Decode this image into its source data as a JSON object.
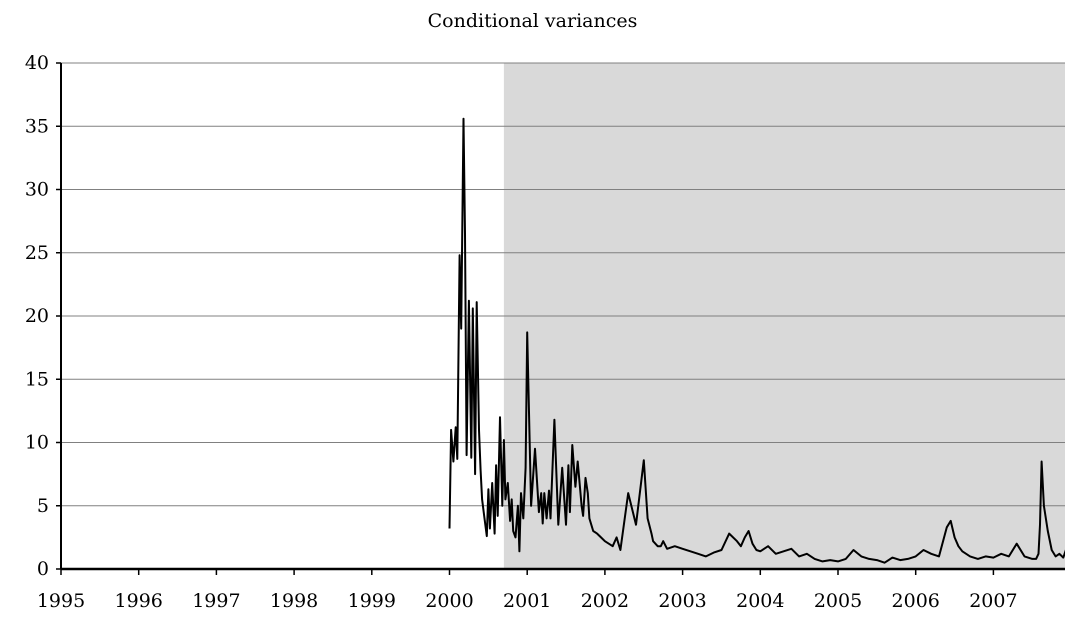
{
  "chart_data": {
    "type": "line",
    "title": "Conditional variances",
    "xlabel": "",
    "ylabel": "",
    "xlim": [
      1995,
      2008
    ],
    "ylim": [
      0,
      40
    ],
    "x_ticks": [
      "1995",
      "1996",
      "1997",
      "1998",
      "1999",
      "2000",
      "2001",
      "2002",
      "2003",
      "2004",
      "2005",
      "2006",
      "2007"
    ],
    "y_ticks": [
      "0",
      "5",
      "10",
      "15",
      "20",
      "25",
      "30",
      "35",
      "40"
    ],
    "grid": "horizontal",
    "legend": "none",
    "shaded_region": {
      "x_start": 2000.7,
      "x_end": 2008,
      "color": "#d9d9d9"
    },
    "series": [
      {
        "color": "#000000",
        "x": [
          2000.0,
          2000.02,
          2000.05,
          2000.08,
          2000.1,
          2000.13,
          2000.15,
          2000.18,
          2000.2,
          2000.22,
          2000.25,
          2000.28,
          2000.3,
          2000.33,
          2000.35,
          2000.38,
          2000.4,
          2000.42,
          2000.45,
          2000.48,
          2000.5,
          2000.52,
          2000.55,
          2000.58,
          2000.6,
          2000.62,
          2000.65,
          2000.68,
          2000.7,
          2000.72,
          2000.75,
          2000.78,
          2000.8,
          2000.82,
          2000.85,
          2000.88,
          2000.9,
          2000.92,
          2000.95,
          2000.98,
          2001.0,
          2001.05,
          2001.1,
          2001.15,
          2001.18,
          2001.2,
          2001.22,
          2001.25,
          2001.28,
          2001.3,
          2001.35,
          2001.4,
          2001.45,
          2001.5,
          2001.53,
          2001.55,
          2001.58,
          2001.62,
          2001.65,
          2001.7,
          2001.72,
          2001.75,
          2001.78,
          2001.8,
          2001.85,
          2001.9,
          2001.95,
          2002.0,
          2002.05,
          2002.1,
          2002.15,
          2002.2,
          2002.3,
          2002.4,
          2002.5,
          2002.55,
          2002.6,
          2002.62,
          2002.65,
          2002.68,
          2002.72,
          2002.75,
          2002.8,
          2002.9,
          2003.0,
          2003.1,
          2003.2,
          2003.3,
          2003.4,
          2003.5,
          2003.6,
          2003.7,
          2003.75,
          2003.8,
          2003.85,
          2003.9,
          2003.95,
          2004.0,
          2004.1,
          2004.2,
          2004.3,
          2004.4,
          2004.5,
          2004.6,
          2004.7,
          2004.8,
          2004.9,
          2005.0,
          2005.1,
          2005.2,
          2005.3,
          2005.4,
          2005.5,
          2005.6,
          2005.7,
          2005.8,
          2005.9,
          2006.0,
          2006.1,
          2006.2,
          2006.3,
          2006.4,
          2006.45,
          2006.5,
          2006.55,
          2006.6,
          2006.7,
          2006.8,
          2006.9,
          2007.0,
          2007.1,
          2007.2,
          2007.3,
          2007.4,
          2007.5,
          2007.55,
          2007.58,
          2007.6,
          2007.62,
          2007.65,
          2007.7,
          2007.75,
          2007.8,
          2007.85,
          2007.9,
          2007.95
        ],
        "values": [
          3.2,
          11.0,
          8.5,
          11.2,
          8.7,
          24.8,
          19.0,
          35.6,
          26.5,
          9.0,
          21.2,
          8.8,
          20.6,
          7.5,
          21.1,
          11.0,
          7.8,
          5.5,
          4.0,
          2.6,
          6.3,
          3.2,
          6.8,
          2.8,
          8.2,
          4.2,
          12.0,
          5.0,
          10.2,
          5.5,
          6.8,
          3.8,
          5.5,
          3.0,
          2.5,
          5.0,
          1.4,
          6.0,
          4.0,
          8.0,
          18.7,
          5.0,
          9.5,
          4.5,
          6.0,
          3.6,
          6.0,
          4.0,
          6.2,
          4.0,
          11.8,
          3.5,
          8.0,
          3.5,
          8.2,
          4.5,
          9.8,
          6.5,
          8.5,
          5.0,
          4.2,
          7.2,
          6.0,
          4.0,
          3.0,
          2.8,
          2.5,
          2.2,
          2.0,
          1.8,
          2.5,
          1.5,
          6.0,
          3.5,
          8.6,
          4.0,
          2.8,
          2.2,
          2.0,
          1.8,
          1.8,
          2.2,
          1.6,
          1.8,
          1.6,
          1.4,
          1.2,
          1.0,
          1.3,
          1.5,
          2.8,
          2.2,
          1.8,
          2.5,
          3.0,
          2.0,
          1.5,
          1.4,
          1.8,
          1.2,
          1.4,
          1.6,
          1.0,
          1.2,
          0.8,
          0.6,
          0.7,
          0.6,
          0.8,
          1.5,
          1.0,
          0.8,
          0.7,
          0.5,
          0.9,
          0.7,
          0.8,
          1.0,
          1.5,
          1.2,
          1.0,
          3.3,
          3.8,
          2.5,
          1.8,
          1.4,
          1.0,
          0.8,
          1.0,
          0.9,
          1.2,
          1.0,
          2.0,
          1.0,
          0.8,
          0.8,
          1.2,
          3.5,
          8.5,
          5.0,
          3.0,
          1.5,
          1.0,
          1.2,
          0.9,
          1.8
        ]
      }
    ]
  }
}
